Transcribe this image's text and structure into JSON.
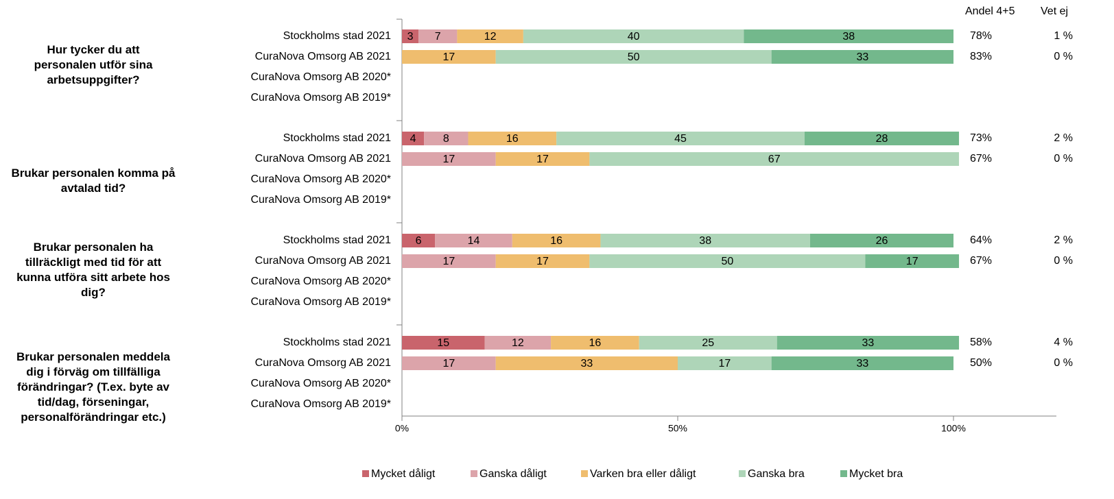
{
  "chart_data": {
    "type": "bar",
    "orientation": "horizontal",
    "stacked": "percent",
    "columns": {
      "share_header": "Andel 4+5",
      "dontknow_header": "Vet ej"
    },
    "categories_legend": [
      "Mycket dåligt",
      "Ganska dåligt",
      "Varken bra eller dåligt",
      "Ganska bra",
      "Mycket bra"
    ],
    "colors": [
      "#c9646c",
      "#dca4aa",
      "#efbd6e",
      "#aed5b8",
      "#73b88c"
    ],
    "xlim": [
      0,
      100
    ],
    "xticks": [
      "0%",
      "50%",
      "100%"
    ],
    "legend_position": "bottom",
    "groups": [
      {
        "question": "Hur tycker du att personalen utför sina arbetsuppgifter?",
        "rows": [
          {
            "label": "Stockholms stad 2021",
            "values": [
              3,
              7,
              12,
              40,
              38
            ],
            "share": "78%",
            "dontknow": "1 %"
          },
          {
            "label": "CuraNova Omsorg AB 2021",
            "values": [
              0,
              0,
              17,
              50,
              33
            ],
            "share": "83%",
            "dontknow": "0 %"
          },
          {
            "label": "CuraNova Omsorg AB 2020*",
            "values": null,
            "share": "",
            "dontknow": ""
          },
          {
            "label": "CuraNova Omsorg AB 2019*",
            "values": null,
            "share": "",
            "dontknow": ""
          }
        ]
      },
      {
        "question": "Brukar personalen komma på avtalad tid?",
        "rows": [
          {
            "label": "Stockholms stad 2021",
            "values": [
              4,
              8,
              16,
              45,
              28
            ],
            "share": "73%",
            "dontknow": "2 %"
          },
          {
            "label": "CuraNova Omsorg AB 2021",
            "values": [
              0,
              17,
              17,
              67,
              0
            ],
            "share": "67%",
            "dontknow": "0 %"
          },
          {
            "label": "CuraNova Omsorg AB 2020*",
            "values": null,
            "share": "",
            "dontknow": ""
          },
          {
            "label": "CuraNova Omsorg AB 2019*",
            "values": null,
            "share": "",
            "dontknow": ""
          }
        ]
      },
      {
        "question": "Brukar personalen ha tillräckligt med tid för att kunna utföra sitt arbete hos dig?",
        "rows": [
          {
            "label": "Stockholms stad 2021",
            "values": [
              6,
              14,
              16,
              38,
              26
            ],
            "share": "64%",
            "dontknow": "2 %"
          },
          {
            "label": "CuraNova Omsorg AB 2021",
            "values": [
              0,
              17,
              17,
              50,
              17
            ],
            "share": "67%",
            "dontknow": "0 %"
          },
          {
            "label": "CuraNova Omsorg AB 2020*",
            "values": null,
            "share": "",
            "dontknow": ""
          },
          {
            "label": "CuraNova Omsorg AB 2019*",
            "values": null,
            "share": "",
            "dontknow": ""
          }
        ]
      },
      {
        "question": "Brukar personalen meddela dig i förväg om tillfälliga förändringar? (T.ex. byte av tid/dag, förseningar, personalförändringar etc.)",
        "rows": [
          {
            "label": "Stockholms stad 2021",
            "values": [
              15,
              12,
              16,
              25,
              33
            ],
            "share": "58%",
            "dontknow": "4 %"
          },
          {
            "label": "CuraNova Omsorg AB 2021",
            "values": [
              0,
              17,
              33,
              17,
              33
            ],
            "share": "50%",
            "dontknow": "0 %"
          },
          {
            "label": "CuraNova Omsorg AB 2020*",
            "values": null,
            "share": "",
            "dontknow": ""
          },
          {
            "label": "CuraNova Omsorg AB 2019*",
            "values": null,
            "share": "",
            "dontknow": ""
          }
        ]
      }
    ]
  }
}
